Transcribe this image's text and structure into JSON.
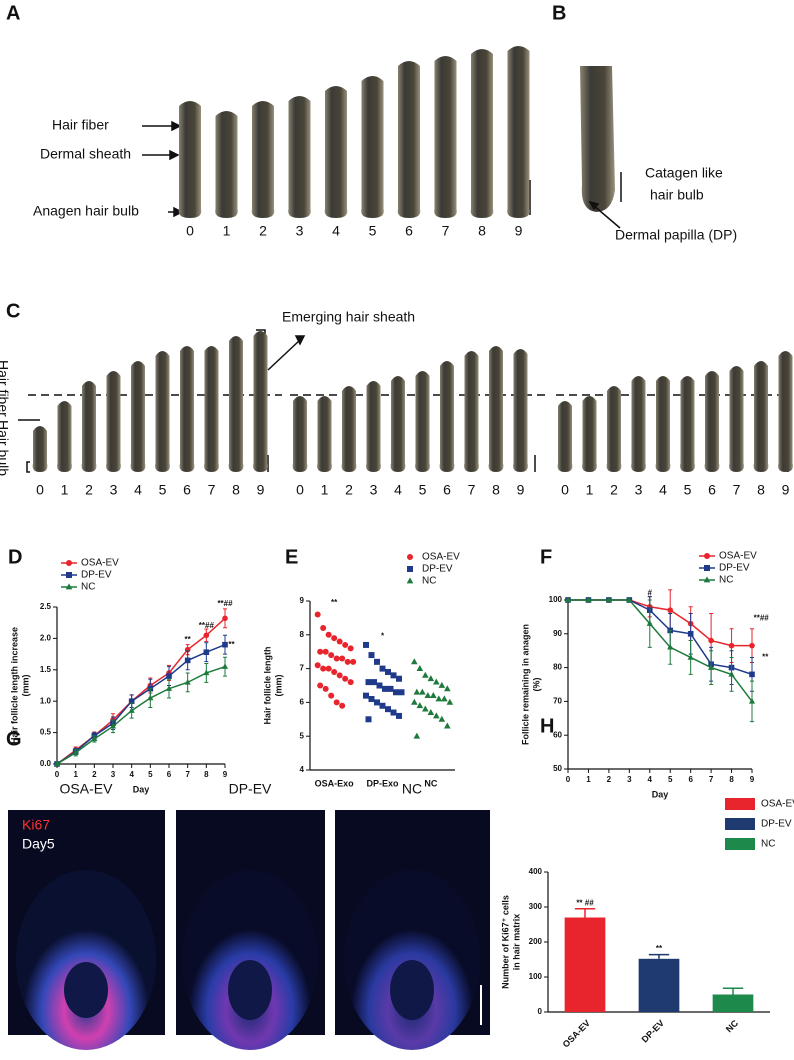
{
  "figure": {
    "a": {
      "panel": "A",
      "labels": [
        "Hair fiber",
        "Dermal sheath",
        "Anagen hair bulb"
      ],
      "numbers": [
        "0",
        "1",
        "2",
        "3",
        "4",
        "5",
        "6",
        "7",
        "8",
        "9"
      ]
    },
    "b": {
      "panel": "B",
      "labels": [
        "Catagen like",
        "hair bulb",
        "Dermal papilla (DP)"
      ]
    },
    "c": {
      "panel": "C",
      "labels": [
        "Emerging hair sheath",
        "Hair fiber",
        "Hair bulb"
      ],
      "numbers": [
        "0",
        "1",
        "2",
        "3",
        "4",
        "5",
        "6",
        "7",
        "8",
        "9"
      ]
    },
    "g": {
      "panel": "G",
      "groups": [
        "OSA-EV",
        "DP-EV",
        "NC"
      ],
      "stain": "Ki67",
      "day": "Day5"
    }
  },
  "chart_data": [
    {
      "type": "line",
      "panel": "D",
      "xlabel": "Day",
      "ylabel": [
        "Hair follicle length increase",
        "(mm)"
      ],
      "x": [
        0,
        1,
        2,
        3,
        4,
        5,
        6,
        7,
        8,
        9
      ],
      "xlim": [
        0,
        9
      ],
      "xticks": [
        0,
        1,
        2,
        3,
        4,
        5,
        6,
        7,
        8,
        9
      ],
      "ylim": [
        0,
        2.5
      ],
      "yticks": [
        {
          "value": 0,
          "label": "0.0"
        },
        0.5,
        {
          "value": 1,
          "label": "1.0"
        },
        1.5,
        {
          "value": 2,
          "label": "2.0"
        },
        2.5
      ],
      "legend": "upper left",
      "series": [
        {
          "name": "OSA-EV",
          "color": "#e8242c",
          "marker": "circle",
          "values": [
            0,
            0.22,
            0.45,
            0.7,
            1.0,
            1.25,
            1.45,
            1.82,
            2.05,
            2.32
          ],
          "errors": [
            0,
            0.05,
            0.06,
            0.1,
            0.1,
            0.12,
            0.12,
            0.08,
            0.1,
            0.15
          ]
        },
        {
          "name": "DP-EV",
          "color": "#1f3a8a",
          "marker": "square",
          "values": [
            0,
            0.2,
            0.45,
            0.65,
            1.0,
            1.2,
            1.4,
            1.65,
            1.78,
            1.9
          ],
          "errors": [
            0,
            0.05,
            0.05,
            0.1,
            0.1,
            0.15,
            0.15,
            0.15,
            0.15,
            0.15
          ]
        },
        {
          "name": "NC",
          "color": "#1d7a3c",
          "marker": "triangle",
          "values": [
            0,
            0.18,
            0.4,
            0.6,
            0.85,
            1.05,
            1.2,
            1.3,
            1.45,
            1.55
          ],
          "errors": [
            0,
            0.05,
            0.05,
            0.1,
            0.12,
            0.15,
            0.15,
            0.15,
            0.15,
            0.15
          ]
        }
      ],
      "annotations": [
        {
          "text": "**",
          "x": 7,
          "y": 1.98
        },
        {
          "text": "**##",
          "x": 8,
          "y": 2.2
        },
        {
          "text": "**##",
          "x": 9,
          "y": 2.55
        },
        {
          "text": "**",
          "x": 9.35,
          "y": 1.9
        }
      ]
    },
    {
      "type": "strip",
      "panel": "E",
      "ylabel": [
        "Hair follicle length",
        "(mm)"
      ],
      "categories": [
        "OSA-Exo",
        "DP-Exo",
        "NC"
      ],
      "ylim": [
        4,
        9
      ],
      "yticks": [
        4,
        5,
        6,
        7,
        8,
        9
      ],
      "legend": "upper right",
      "series": [
        {
          "name": "OSA-EV",
          "color": "#e8242c",
          "marker": "circle",
          "values": [
            8.6,
            8.2,
            8.0,
            7.9,
            7.8,
            7.7,
            7.6,
            7.5,
            7.5,
            7.4,
            7.3,
            7.3,
            7.2,
            7.2,
            7.1,
            7.0,
            7.0,
            6.9,
            6.8,
            6.7,
            6.6,
            6.5,
            6.4,
            6.2,
            6.0,
            5.9
          ]
        },
        {
          "name": "DP-EV",
          "color": "#1f3a8a",
          "marker": "square",
          "values": [
            7.7,
            7.4,
            7.2,
            7.0,
            6.9,
            6.8,
            6.7,
            6.6,
            6.6,
            6.5,
            6.4,
            6.4,
            6.3,
            6.3,
            6.2,
            6.1,
            6.0,
            5.9,
            5.8,
            5.7,
            5.6,
            5.5
          ]
        },
        {
          "name": "NC",
          "color": "#1d7a3c",
          "marker": "triangle",
          "values": [
            7.2,
            7.0,
            6.8,
            6.7,
            6.6,
            6.5,
            6.4,
            6.3,
            6.3,
            6.2,
            6.2,
            6.1,
            6.1,
            6.0,
            6.0,
            5.9,
            5.8,
            5.7,
            5.6,
            5.5,
            5.3,
            5.0
          ]
        }
      ],
      "annotations": [
        {
          "text": "**",
          "x": 0,
          "y": 8.95
        },
        {
          "text": "*",
          "x": 1,
          "y": 7.95
        }
      ]
    },
    {
      "type": "line",
      "panel": "F",
      "xlabel": "Day",
      "ylabel": [
        "Follicle remaining in anagen",
        "(%)"
      ],
      "x": [
        0,
        1,
        2,
        3,
        4,
        5,
        6,
        7,
        8,
        9
      ],
      "xlim": [
        0,
        9
      ],
      "xticks": [
        0,
        1,
        2,
        3,
        4,
        5,
        6,
        7,
        8,
        9
      ],
      "ylim": [
        50,
        100
      ],
      "yticks": [
        50,
        60,
        70,
        80,
        90,
        100
      ],
      "legend": "upper right",
      "series": [
        {
          "name": "OSA-EV",
          "color": "#e8242c",
          "marker": "circle",
          "values": [
            100,
            100,
            100,
            100,
            98,
            97,
            93,
            88,
            86.5,
            86.5
          ],
          "errors": [
            0,
            0,
            0,
            0,
            3,
            6,
            5,
            8,
            5,
            5
          ]
        },
        {
          "name": "DP-EV",
          "color": "#1f3a8a",
          "marker": "square",
          "values": [
            100,
            100,
            100,
            100,
            97,
            91,
            90,
            81,
            80,
            78
          ],
          "errors": [
            0,
            0,
            0,
            0,
            4,
            5,
            6,
            5,
            5,
            5
          ]
        },
        {
          "name": "NC",
          "color": "#1d7a3c",
          "marker": "triangle",
          "values": [
            100,
            100,
            100,
            100,
            93,
            86,
            83,
            80,
            78,
            70
          ],
          "errors": [
            0,
            0,
            0,
            0,
            7,
            5,
            5,
            5,
            5,
            6
          ]
        }
      ],
      "annotations": [
        {
          "text": "#",
          "x": 4,
          "y": 102
        },
        {
          "text": "**##",
          "x": 9.45,
          "y": 94.5
        },
        {
          "text": "**",
          "x": 9.65,
          "y": 83
        }
      ]
    },
    {
      "type": "bar",
      "panel": "H",
      "ylabel": [
        "Number of Ki67⁺ cells",
        "in hair matrix"
      ],
      "categories": [
        "OSA-EV",
        "DP-EV",
        "NC"
      ],
      "ylim": [
        0,
        400
      ],
      "yticks": [
        0,
        100,
        200,
        300,
        400
      ],
      "legend": "upper right",
      "series": [
        {
          "name": "OSA-EV",
          "color": "#e8242c"
        },
        {
          "name": "DP-EV",
          "color": "#1f3a6e"
        },
        {
          "name": "NC",
          "color": "#1d8a4c"
        }
      ],
      "values": [
        270,
        152,
        50
      ],
      "errors": [
        25,
        12,
        18
      ],
      "annotations": [
        {
          "text": "** ##",
          "x": 0,
          "y": 310
        },
        {
          "text": "**",
          "x": 1,
          "y": 180
        }
      ]
    }
  ]
}
